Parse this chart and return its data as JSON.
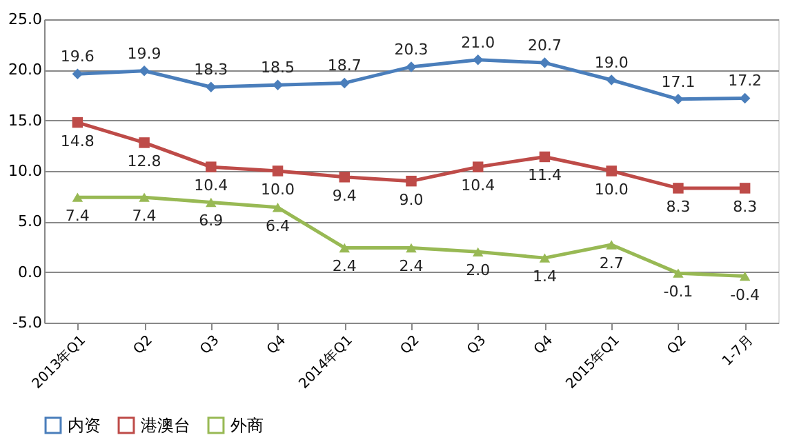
{
  "chart_data": {
    "type": "line",
    "categories": [
      "2013年Q1",
      "Q2",
      "Q3",
      "Q4",
      "2014年Q1",
      "Q2",
      "Q3",
      "Q4",
      "2015年Q1",
      "Q2",
      "1-7月"
    ],
    "series": [
      {
        "name": "内资",
        "color": "#4a7ebb",
        "marker": "diamond",
        "values": [
          19.6,
          19.9,
          18.3,
          18.5,
          18.7,
          20.3,
          21.0,
          20.7,
          19.0,
          17.1,
          17.2
        ],
        "value_labels": [
          "19.6",
          "19.9",
          "18.3",
          "18.5",
          "18.7",
          "20.3",
          "21.0",
          "20.7",
          "19.0",
          "17.1",
          "17.2"
        ]
      },
      {
        "name": "港澳台",
        "color": "#be4b48",
        "marker": "square",
        "values": [
          14.8,
          12.8,
          10.4,
          10.0,
          9.4,
          9.0,
          10.4,
          11.4,
          10.0,
          8.3,
          8.3
        ],
        "value_labels": [
          "14.8",
          "12.8",
          "10.4",
          "10.0",
          "9.4",
          "9.0",
          "10.4",
          "11.4",
          "10.0",
          "8.3",
          "8.3"
        ]
      },
      {
        "name": "外商",
        "color": "#98b954",
        "marker": "triangle",
        "values": [
          7.4,
          7.4,
          6.9,
          6.4,
          2.4,
          2.4,
          2.0,
          1.4,
          2.7,
          -0.1,
          -0.4
        ],
        "value_labels": [
          "7.4",
          "7.4",
          "6.9",
          "6.4",
          "2.4",
          "2.4",
          "2.0",
          "1.4",
          "2.7",
          "-0.1",
          "-0.4"
        ]
      }
    ],
    "ylim": [
      -5,
      25
    ],
    "yticks": [
      {
        "value": -5,
        "label": "-5.0"
      },
      {
        "value": 0,
        "label": "0.0"
      },
      {
        "value": 5,
        "label": "5.0"
      },
      {
        "value": 10,
        "label": "10.0"
      },
      {
        "value": 15,
        "label": "15.0"
      },
      {
        "value": 20,
        "label": "20.0"
      },
      {
        "value": 25,
        "label": "25.0"
      }
    ],
    "grid": "y",
    "legend": "bottom",
    "line_style": "solid"
  }
}
